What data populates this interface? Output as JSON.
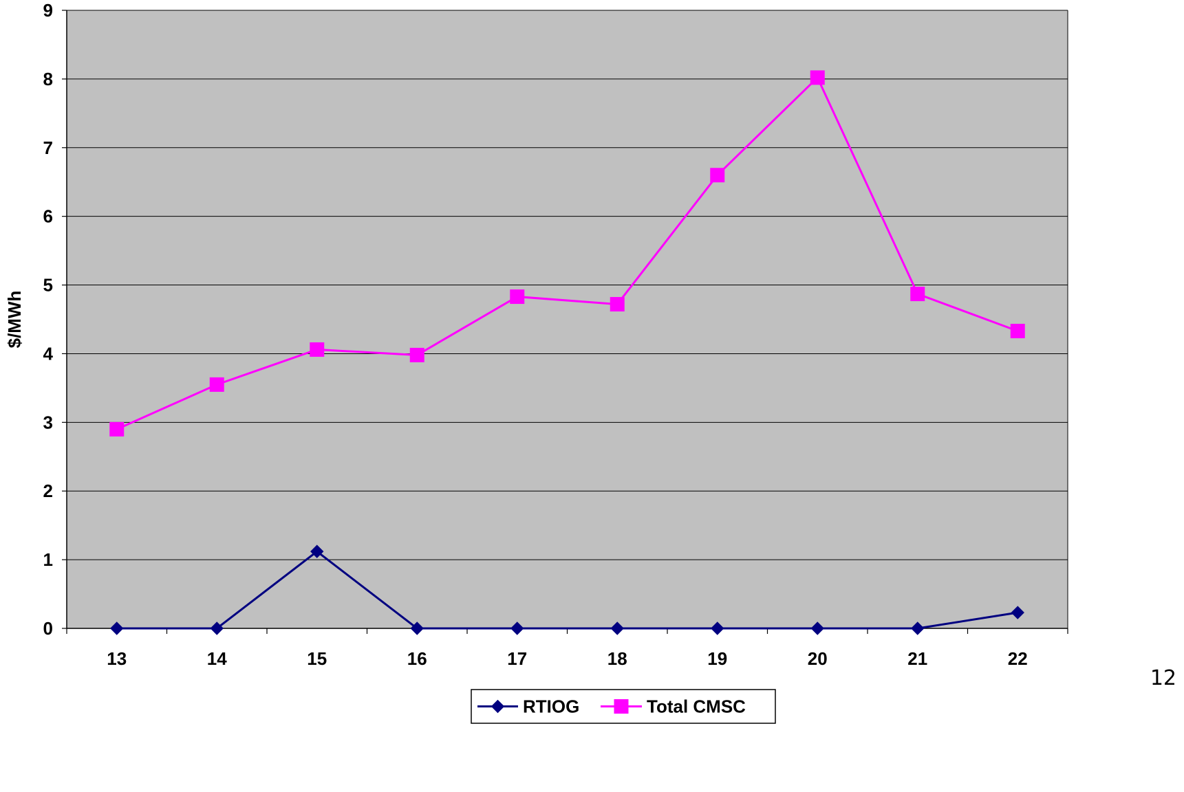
{
  "page_number": "12",
  "chart_data": {
    "type": "line",
    "categories": [
      "13",
      "14",
      "15",
      "16",
      "17",
      "18",
      "19",
      "20",
      "21",
      "22"
    ],
    "series": [
      {
        "name": "RTIOG",
        "color": "#000080",
        "marker": "diamond",
        "values": [
          0,
          0,
          1.12,
          0,
          0,
          0,
          0,
          0,
          0,
          0.23
        ]
      },
      {
        "name": "Total CMSC",
        "color": "#FF00FF",
        "marker": "square",
        "values": [
          2.9,
          3.55,
          4.06,
          3.98,
          4.83,
          4.72,
          6.6,
          8.02,
          4.87,
          4.33
        ]
      }
    ],
    "ylabel": "$/MWh",
    "ylim": [
      0,
      9
    ],
    "yticks": [
      "0",
      "1",
      "2",
      "3",
      "4",
      "5",
      "6",
      "7",
      "8",
      "9"
    ],
    "grid": true,
    "plot_background": "#C0C0C0",
    "legend_position": "bottom"
  }
}
